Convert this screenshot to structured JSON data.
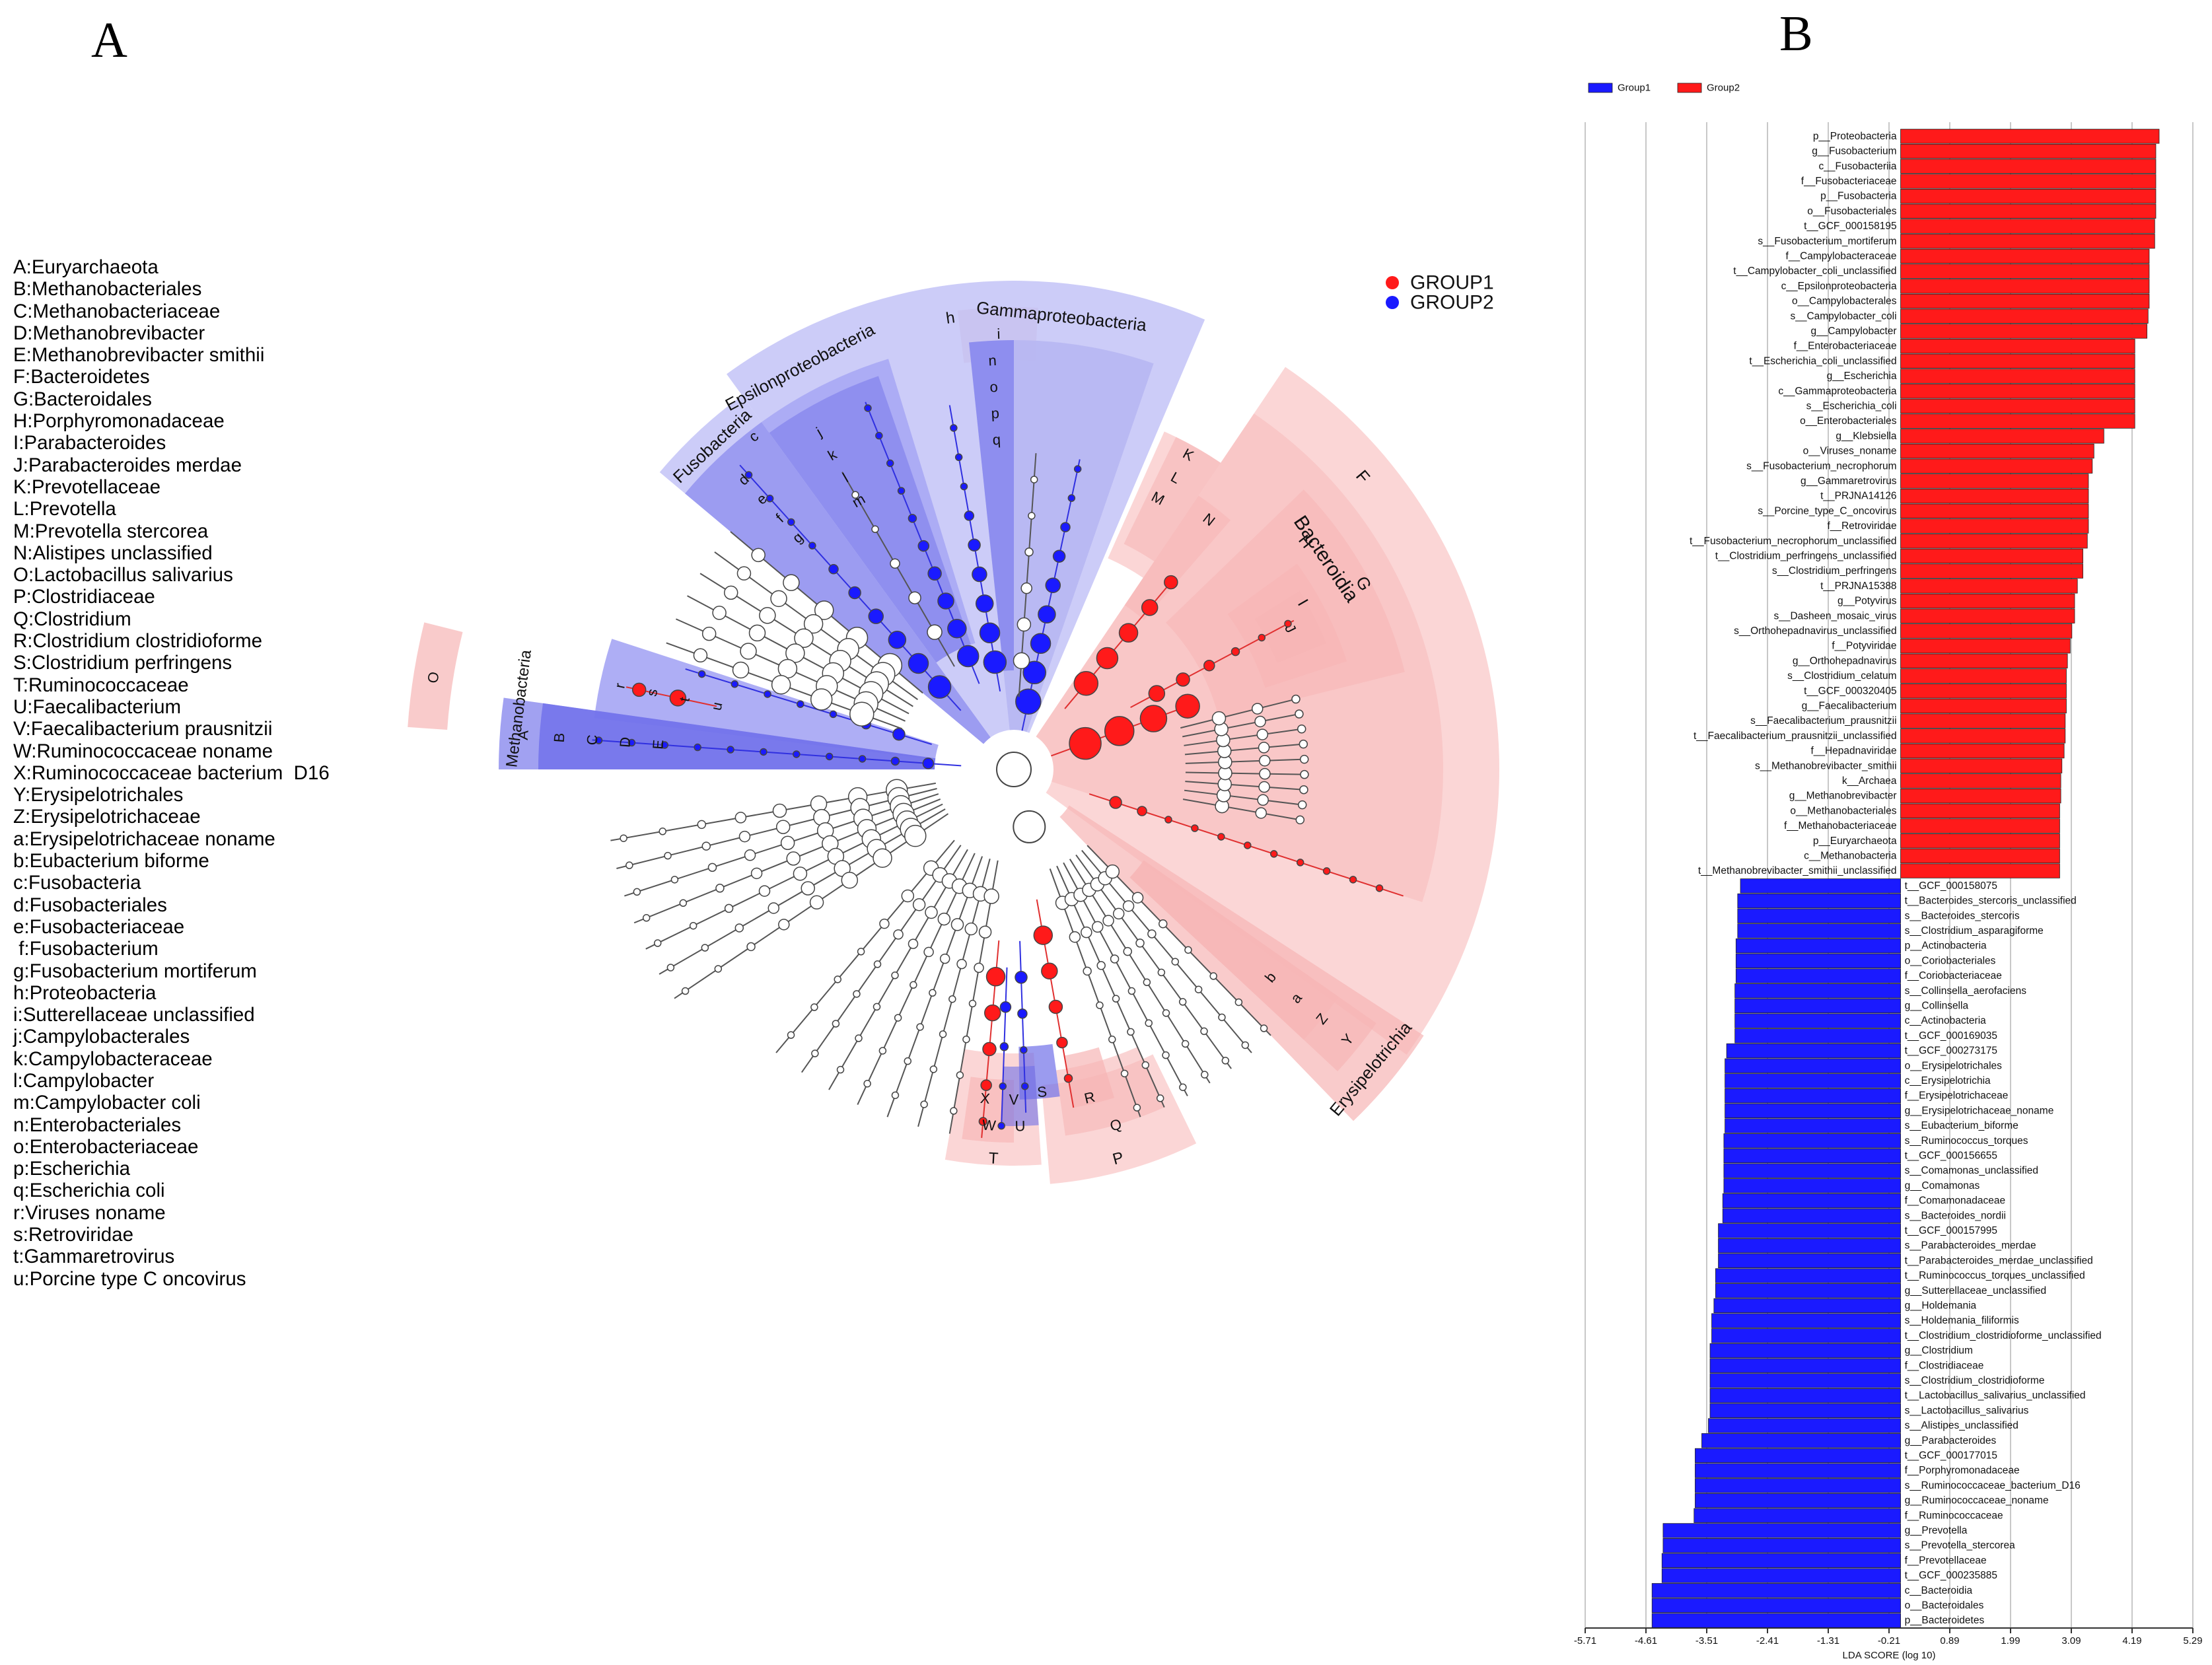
{
  "panels": {
    "a": "A",
    "b": "B"
  },
  "colors": {
    "group1": "#ff1a1a",
    "group2": "#1a1aff",
    "light_red": "#f7b5b5",
    "light_blue": "#c3c3f7"
  },
  "cladogram": {
    "groups": [
      "GROUP1",
      "GROUP2"
    ],
    "legend": [
      "A:Euryarchaeota",
      "B:Methanobacteriales",
      "C:Methanobacteriaceae",
      "D:Methanobrevibacter",
      "E:Methanobrevibacter smithii",
      "F:Bacteroidetes",
      "G:Bacteroidales",
      "H:Porphyromonadaceae",
      "I:Parabacteroides",
      "J:Parabacteroides merdae",
      "K:Prevotellaceae",
      "L:Prevotella",
      "M:Prevotella stercorea",
      "N:Alistipes unclassified",
      "O:Lactobacillus salivarius",
      "P:Clostridiaceae",
      "Q:Clostridium",
      "R:Clostridium clostridioforme",
      "S:Clostridium perfringens",
      "T:Ruminococcaceae",
      "U:Faecalibacterium",
      "V:Faecalibacterium prausnitzii",
      "W:Ruminococcaceae noname",
      "X:Ruminococcaceae bacterium  D16",
      "Y:Erysipelotrichales",
      "Z:Erysipelotrichaceae",
      "a:Erysipelotrichaceae noname",
      "b:Eubacterium biforme",
      "c:Fusobacteria",
      "d:Fusobacteriales",
      "e:Fusobacteriaceae",
      " f:Fusobacterium",
      "g:Fusobacterium mortiferum",
      "h:Proteobacteria",
      "i:Sutterellaceae unclassified",
      "j:Campylobacterales",
      "k:Campylobacteraceae",
      "l:Campylobacter",
      "m:Campylobacter coli",
      "n:Enterobacteriales",
      "o:Enterobacteriaceae",
      "p:Escherichia",
      "q:Escherichia coli",
      "r:Viruses noname",
      "s:Retroviridae",
      "t:Gammaretrovirus",
      "u:Porcine type C oncovirus"
    ],
    "clade_labels": {
      "methanobacteria": "Methanobacteria",
      "fusobacteria": "Fusobacteria",
      "epsilon": "Epsilonproteobacteria",
      "gamma": "Gammaproteobacteria",
      "bacteroidia": "Bacteroidia",
      "erysipelotrichia": "Erysipelotrichia",
      "h": "h",
      "F": "F",
      "G": "G",
      "H": "H",
      "I": "I",
      "J": "J",
      "K": "K",
      "L": "L",
      "M": "M",
      "N": "N",
      "A": "A",
      "B": "B",
      "C": "C",
      "D": "D",
      "E": "E",
      "r": "r",
      "s": "s",
      "t": "t",
      "u": "u",
      "c": "c",
      "d": "d",
      "e": "e",
      "f": "f",
      "g": "g",
      "j": "j",
      "k": "k",
      "l": "l",
      "m": "m",
      "n": "n",
      "o": "o",
      "p": "p",
      "q": "q",
      "i": "i",
      "O": "O",
      "P": "P",
      "Q": "Q",
      "R": "R",
      "S": "S",
      "T": "T",
      "U": "U",
      "V": "V",
      "W": "W",
      "X": "X",
      "Y": "Y",
      "Z": "Z",
      "a": "a",
      "b": "b"
    }
  },
  "chart_data": {
    "type": "bar",
    "orientation": "horizontal",
    "xlabel": "LDA SCORE (log 10)",
    "xlim": [
      -5.71,
      5.29
    ],
    "xticks": [
      -5.71,
      -4.61,
      -3.51,
      -2.41,
      -1.31,
      -0.21,
      0.89,
      1.99,
      3.09,
      4.19,
      5.29
    ],
    "xtick_labels": [
      "-5.71",
      "-4.61",
      "-3.51",
      "-2.41",
      "-1.31",
      "-0.21",
      "0.89",
      "1.99",
      "3.09",
      "4.19",
      "5.29"
    ],
    "grid": true,
    "legend": [
      {
        "name": "Group1",
        "color": "#1a1aff"
      },
      {
        "name": "Group2",
        "color": "#ff1a1a"
      }
    ],
    "legend_position": "top-left",
    "bars": [
      {
        "label": "p__Proteobacteria",
        "value": 4.68,
        "group": "Group2"
      },
      {
        "label": "g__Fusobacterium",
        "value": 4.62,
        "group": "Group2"
      },
      {
        "label": "c__Fusobacteriia",
        "value": 4.62,
        "group": "Group2"
      },
      {
        "label": "f__Fusobacteriaceae",
        "value": 4.62,
        "group": "Group2"
      },
      {
        "label": "p__Fusobacteria",
        "value": 4.62,
        "group": "Group2"
      },
      {
        "label": "o__Fusobacteriales",
        "value": 4.62,
        "group": "Group2"
      },
      {
        "label": "t__GCF_000158195",
        "value": 4.6,
        "group": "Group2"
      },
      {
        "label": "s__Fusobacterium_mortiferum",
        "value": 4.6,
        "group": "Group2"
      },
      {
        "label": "f__Campylobacteraceae",
        "value": 4.5,
        "group": "Group2"
      },
      {
        "label": "t__Campylobacter_coli_unclassified",
        "value": 4.5,
        "group": "Group2"
      },
      {
        "label": "c__Epsilonproteobacteria",
        "value": 4.5,
        "group": "Group2"
      },
      {
        "label": "o__Campylobacterales",
        "value": 4.5,
        "group": "Group2"
      },
      {
        "label": "s__Campylobacter_coli",
        "value": 4.48,
        "group": "Group2"
      },
      {
        "label": "g__Campylobacter",
        "value": 4.46,
        "group": "Group2"
      },
      {
        "label": "f__Enterobacteriaceae",
        "value": 4.24,
        "group": "Group2"
      },
      {
        "label": "t__Escherichia_coli_unclassified",
        "value": 4.24,
        "group": "Group2"
      },
      {
        "label": "g__Escherichia",
        "value": 4.24,
        "group": "Group2"
      },
      {
        "label": "c__Gammaproteobacteria",
        "value": 4.24,
        "group": "Group2"
      },
      {
        "label": "s__Escherichia_coli",
        "value": 4.24,
        "group": "Group2"
      },
      {
        "label": "o__Enterobacteriales",
        "value": 4.24,
        "group": "Group2"
      },
      {
        "label": "g__Klebsiella",
        "value": 3.68,
        "group": "Group2"
      },
      {
        "label": "o__Viruses_noname",
        "value": 3.5,
        "group": "Group2"
      },
      {
        "label": "s__Fusobacterium_necrophorum",
        "value": 3.47,
        "group": "Group2"
      },
      {
        "label": "g__Gammaretrovirus",
        "value": 3.4,
        "group": "Group2"
      },
      {
        "label": "t__PRJNA14126",
        "value": 3.4,
        "group": "Group2"
      },
      {
        "label": "s__Porcine_type_C_oncovirus",
        "value": 3.4,
        "group": "Group2"
      },
      {
        "label": "f__Retroviridae",
        "value": 3.4,
        "group": "Group2"
      },
      {
        "label": "t__Fusobacterium_necrophorum_unclassified",
        "value": 3.38,
        "group": "Group2"
      },
      {
        "label": "t__Clostridium_perfringens_unclassified",
        "value": 3.3,
        "group": "Group2"
      },
      {
        "label": "s__Clostridium_perfringens",
        "value": 3.3,
        "group": "Group2"
      },
      {
        "label": "t__PRJNA15388",
        "value": 3.2,
        "group": "Group2"
      },
      {
        "label": "g__Potyvirus",
        "value": 3.15,
        "group": "Group2"
      },
      {
        "label": "s__Dasheen_mosaic_virus",
        "value": 3.15,
        "group": "Group2"
      },
      {
        "label": "s__Orthohepadnavirus_unclassified",
        "value": 3.1,
        "group": "Group2"
      },
      {
        "label": "f__Potyviridae",
        "value": 3.07,
        "group": "Group2"
      },
      {
        "label": "g__Orthohepadnavirus",
        "value": 3.02,
        "group": "Group2"
      },
      {
        "label": "s__Clostridium_celatum",
        "value": 3.0,
        "group": "Group2"
      },
      {
        "label": "t__GCF_000320405",
        "value": 3.0,
        "group": "Group2"
      },
      {
        "label": "g__Faecalibacterium",
        "value": 3.0,
        "group": "Group2"
      },
      {
        "label": "s__Faecalibacterium_prausnitzii",
        "value": 2.98,
        "group": "Group2"
      },
      {
        "label": "t__Faecalibacterium_prausnitzii_unclassified",
        "value": 2.98,
        "group": "Group2"
      },
      {
        "label": "f__Hepadnaviridae",
        "value": 2.96,
        "group": "Group2"
      },
      {
        "label": "s__Methanobrevibacter_smithii",
        "value": 2.92,
        "group": "Group2"
      },
      {
        "label": "k__Archaea",
        "value": 2.9,
        "group": "Group2"
      },
      {
        "label": "g__Methanobrevibacter",
        "value": 2.9,
        "group": "Group2"
      },
      {
        "label": "o__Methanobacteriales",
        "value": 2.88,
        "group": "Group2"
      },
      {
        "label": "f__Methanobacteriaceae",
        "value": 2.88,
        "group": "Group2"
      },
      {
        "label": "p__Euryarchaeota",
        "value": 2.88,
        "group": "Group2"
      },
      {
        "label": "c__Methanobacteria",
        "value": 2.88,
        "group": "Group2"
      },
      {
        "label": "t__Methanobrevibacter_smithii_unclassified",
        "value": 2.88,
        "group": "Group2"
      },
      {
        "label": "t__GCF_000158075",
        "value": -2.9,
        "group": "Group1"
      },
      {
        "label": "t__Bacteroides_stercoris_unclassified",
        "value": -2.95,
        "group": "Group1"
      },
      {
        "label": "s__Bacteroides_stercoris",
        "value": -2.95,
        "group": "Group1"
      },
      {
        "label": "s__Clostridium_asparagiforme",
        "value": -2.95,
        "group": "Group1"
      },
      {
        "label": "p__Actinobacteria",
        "value": -2.98,
        "group": "Group1"
      },
      {
        "label": "o__Coriobacteriales",
        "value": -2.98,
        "group": "Group1"
      },
      {
        "label": "f__Coriobacteriaceae",
        "value": -2.98,
        "group": "Group1"
      },
      {
        "label": "s__Collinsella_aerofaciens",
        "value": -3.0,
        "group": "Group1"
      },
      {
        "label": "g__Collinsella",
        "value": -3.0,
        "group": "Group1"
      },
      {
        "label": "c__Actinobacteria",
        "value": -3.0,
        "group": "Group1"
      },
      {
        "label": "t__GCF_000169035",
        "value": -3.0,
        "group": "Group1"
      },
      {
        "label": "t__GCF_000273175",
        "value": -3.15,
        "group": "Group1"
      },
      {
        "label": "o__Erysipelotrichales",
        "value": -3.18,
        "group": "Group1"
      },
      {
        "label": "c__Erysipelotrichia",
        "value": -3.18,
        "group": "Group1"
      },
      {
        "label": "f__Erysipelotrichaceae",
        "value": -3.18,
        "group": "Group1"
      },
      {
        "label": "g__Erysipelotrichaceae_noname",
        "value": -3.18,
        "group": "Group1"
      },
      {
        "label": "s__Eubacterium_biforme",
        "value": -3.18,
        "group": "Group1"
      },
      {
        "label": "s__Ruminococcus_torques",
        "value": -3.2,
        "group": "Group1"
      },
      {
        "label": "t__GCF_000156655",
        "value": -3.2,
        "group": "Group1"
      },
      {
        "label": "s__Comamonas_unclassified",
        "value": -3.2,
        "group": "Group1"
      },
      {
        "label": "g__Comamonas",
        "value": -3.2,
        "group": "Group1"
      },
      {
        "label": "f__Comamonadaceae",
        "value": -3.22,
        "group": "Group1"
      },
      {
        "label": "s__Bacteroides_nordii",
        "value": -3.22,
        "group": "Group1"
      },
      {
        "label": "t__GCF_000157995",
        "value": -3.3,
        "group": "Group1"
      },
      {
        "label": "s__Parabacteroides_merdae",
        "value": -3.3,
        "group": "Group1"
      },
      {
        "label": "t__Parabacteroides_merdae_unclassified",
        "value": -3.3,
        "group": "Group1"
      },
      {
        "label": "t__Ruminococcus_torques_unclassified",
        "value": -3.35,
        "group": "Group1"
      },
      {
        "label": "g__Sutterellaceae_unclassified",
        "value": -3.35,
        "group": "Group1"
      },
      {
        "label": "g__Holdemania",
        "value": -3.38,
        "group": "Group1"
      },
      {
        "label": "s__Holdemania_filiformis",
        "value": -3.42,
        "group": "Group1"
      },
      {
        "label": "t__Clostridium_clostridioforme_unclassified",
        "value": -3.42,
        "group": "Group1"
      },
      {
        "label": "g__Clostridium",
        "value": -3.45,
        "group": "Group1"
      },
      {
        "label": "f__Clostridiaceae",
        "value": -3.45,
        "group": "Group1"
      },
      {
        "label": "s__Clostridium_clostridioforme",
        "value": -3.45,
        "group": "Group1"
      },
      {
        "label": "t__Lactobacillus_salivarius_unclassified",
        "value": -3.45,
        "group": "Group1"
      },
      {
        "label": "s__Lactobacillus_salivarius",
        "value": -3.45,
        "group": "Group1"
      },
      {
        "label": "s__Alistipes_unclassified",
        "value": -3.48,
        "group": "Group1"
      },
      {
        "label": "g__Parabacteroides",
        "value": -3.6,
        "group": "Group1"
      },
      {
        "label": "t__GCF_000177015",
        "value": -3.72,
        "group": "Group1"
      },
      {
        "label": "f__Porphyromonadaceae",
        "value": -3.72,
        "group": "Group1"
      },
      {
        "label": "s__Ruminococcaceae_bacterium_D16",
        "value": -3.72,
        "group": "Group1"
      },
      {
        "label": "g__Ruminococcaceae_noname",
        "value": -3.72,
        "group": "Group1"
      },
      {
        "label": "f__Ruminococcaceae",
        "value": -3.74,
        "group": "Group1"
      },
      {
        "label": "g__Prevotella",
        "value": -4.3,
        "group": "Group1"
      },
      {
        "label": "s__Prevotella_stercorea",
        "value": -4.3,
        "group": "Group1"
      },
      {
        "label": "f__Prevotellaceae",
        "value": -4.32,
        "group": "Group1"
      },
      {
        "label": "t__GCF_000235885",
        "value": -4.32,
        "group": "Group1"
      },
      {
        "label": "c__Bacteroidia",
        "value": -4.5,
        "group": "Group1"
      },
      {
        "label": "o__Bacteroidales",
        "value": -4.5,
        "group": "Group1"
      },
      {
        "label": "p__Bacteroidetes",
        "value": -4.5,
        "group": "Group1"
      }
    ]
  }
}
